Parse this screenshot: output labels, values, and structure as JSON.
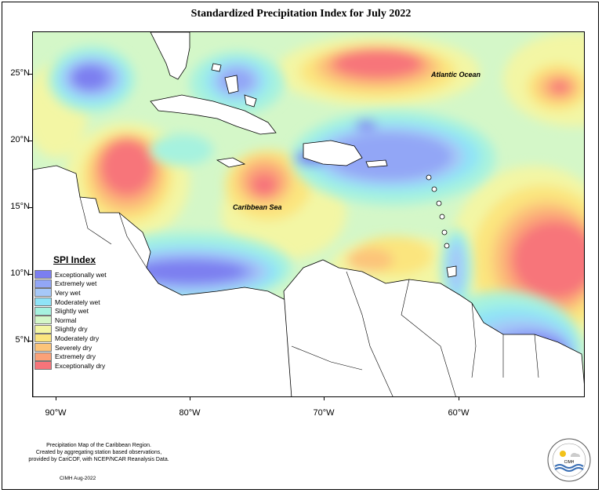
{
  "title": "Standardized Precipitation Index for July 2022",
  "map_labels": {
    "atlantic": "Atlantic Ocean",
    "caribbean": "Caribbean Sea"
  },
  "lat_ticks": [
    "25°N",
    "20°N",
    "15°N",
    "10°N",
    "5°N"
  ],
  "lon_ticks": [
    "90°W",
    "80°W",
    "70°W",
    "60°W"
  ],
  "legend": {
    "title": "SPI Index",
    "items": [
      {
        "label": "Exceptionally wet",
        "color": "#7b7ef0"
      },
      {
        "label": "Extremely wet",
        "color": "#92a6f6"
      },
      {
        "label": "Very wet",
        "color": "#a6c8f8"
      },
      {
        "label": "Moderately wet",
        "color": "#8fe3f7"
      },
      {
        "label": "Slightly wet",
        "color": "#a6f2df"
      },
      {
        "label": "Normal",
        "color": "#d4f7c8"
      },
      {
        "label": "Slightly dry",
        "color": "#f3f6a4"
      },
      {
        "label": "Moderately dry",
        "color": "#fbe57e"
      },
      {
        "label": "Severely dry",
        "color": "#fcc47a"
      },
      {
        "label": "Extremely dry",
        "color": "#fba178"
      },
      {
        "label": "Exceptionally dry",
        "color": "#f7747a"
      }
    ]
  },
  "footer": {
    "line1": "Precipitation Map of the Caribbean Region.",
    "line2": "Created by aggregating station based observations,",
    "line3": "provided by CariCOF, with NCEP/NCAR Reanalysis Data."
  },
  "credit": "CIMH Aug-2022",
  "logo_text": "CIMH"
}
